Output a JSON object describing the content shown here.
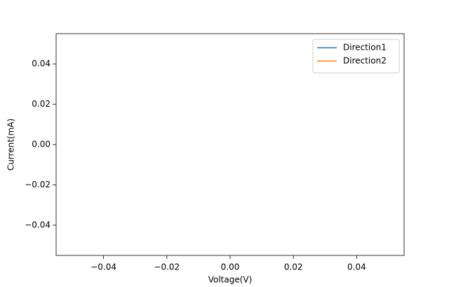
{
  "chart_data": {
    "type": "line",
    "x_label": "Voltage(V)",
    "y_label": "Current(mA)",
    "x": [],
    "series": [
      {
        "name": "Direction1",
        "color": "#1f77b4",
        "values": []
      },
      {
        "name": "Direction2",
        "color": "#ff7f0e",
        "values": []
      }
    ],
    "xlim": [
      -0.055,
      0.055
    ],
    "ylim": [
      -0.055,
      0.055
    ],
    "xticks": [
      {
        "value": -0.04,
        "label": "−0.04"
      },
      {
        "value": -0.02,
        "label": "−0.02"
      },
      {
        "value": 0,
        "label": "0.00"
      },
      0.02,
      0.04
    ],
    "yticks": [
      {
        "value": -0.04,
        "label": "−0.04"
      },
      {
        "value": -0.02,
        "label": "−0.02"
      },
      {
        "value": 0,
        "label": "0.00"
      },
      0.02,
      0.04
    ],
    "grid": false,
    "legend": "upper right"
  }
}
